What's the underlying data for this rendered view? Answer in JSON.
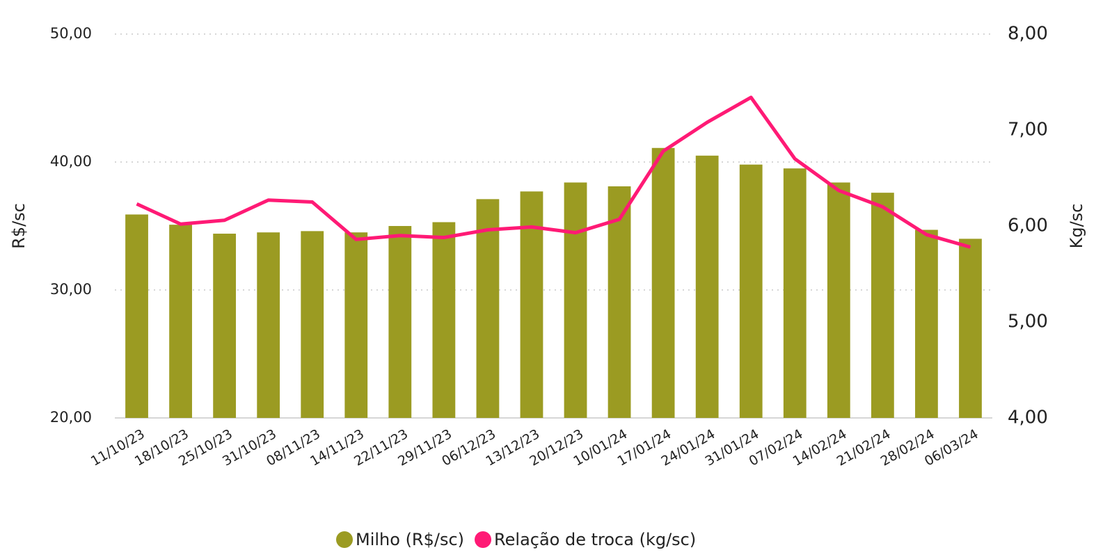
{
  "chart_data": {
    "type": "bar",
    "categories": [
      "11/10/23",
      "18/10/23",
      "25/10/23",
      "31/10/23",
      "08/11/23",
      "14/11/23",
      "22/11/23",
      "29/11/23",
      "06/12/23",
      "13/12/23",
      "20/12/23",
      "10/01/24",
      "17/01/24",
      "24/01/24",
      "31/01/24",
      "07/02/24",
      "14/02/24",
      "21/02/24",
      "28/02/24",
      "06/03/24"
    ],
    "series": [
      {
        "name": "Milho (R$/sc)",
        "type": "bar",
        "color": "#9b9b22",
        "values": [
          35.9,
          35.1,
          34.4,
          34.5,
          34.6,
          34.5,
          35.0,
          35.3,
          37.1,
          37.7,
          38.4,
          38.1,
          41.1,
          40.5,
          39.8,
          39.5,
          38.4,
          37.6,
          34.7,
          34.0
        ]
      },
      {
        "name": "Relação de troca (kg/sc)",
        "type": "line",
        "axis": "y2",
        "color": "#ff1a75",
        "values": [
          6.23,
          6.02,
          6.06,
          6.27,
          6.25,
          5.86,
          5.9,
          5.88,
          5.96,
          5.99,
          5.93,
          6.07,
          6.78,
          7.08,
          7.34,
          6.7,
          6.37,
          6.2,
          5.91,
          5.78
        ]
      }
    ],
    "ylabel": "R$/sc",
    "y2label": "Kg/sc",
    "ylim": [
      20,
      50
    ],
    "yticks": [
      {
        "value": 20,
        "label": "20,00"
      },
      {
        "value": 30,
        "label": "30,00"
      },
      {
        "value": 40,
        "label": "40,00"
      },
      {
        "value": 50,
        "label": "50,00"
      }
    ],
    "y2lim": [
      4,
      8
    ],
    "y2ticks": [
      {
        "value": 4,
        "label": "4,00"
      },
      {
        "value": 5,
        "label": "5,00"
      },
      {
        "value": 6,
        "label": "6,00"
      },
      {
        "value": 7,
        "label": "7,00"
      },
      {
        "value": 8,
        "label": "8,00"
      }
    ],
    "grid": true,
    "legend": "bottom"
  }
}
